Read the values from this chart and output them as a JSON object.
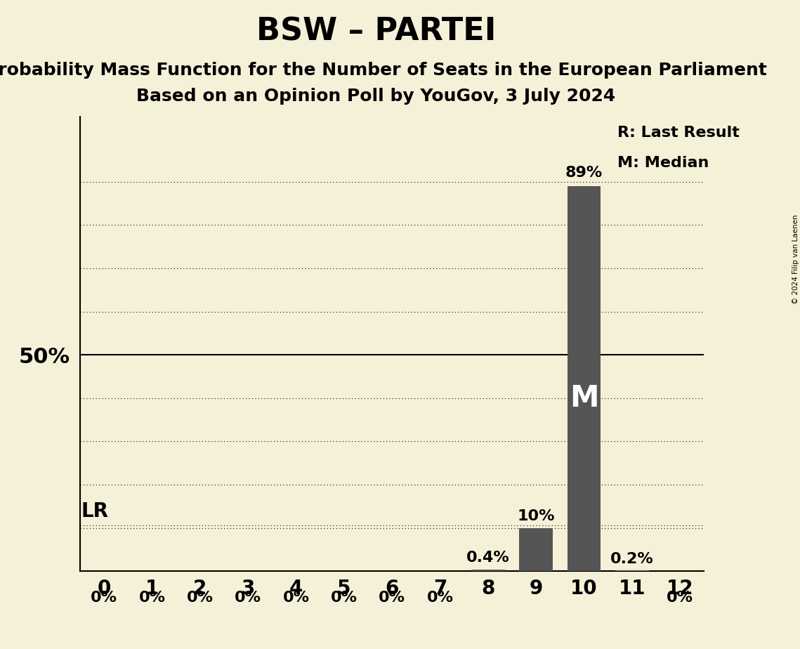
{
  "title": "BSW – PARTEI",
  "subtitle_line1": "Probability Mass Function for the Number of Seats in the European Parliament",
  "subtitle_line2": "Based on an Opinion Poll by YouGov, 3 July 2024",
  "copyright": "© 2024 Filip van Laenen",
  "seats": [
    0,
    1,
    2,
    3,
    4,
    5,
    6,
    7,
    8,
    9,
    10,
    11,
    12
  ],
  "probabilities": [
    0.0,
    0.0,
    0.0,
    0.0,
    0.0,
    0.0,
    0.0,
    0.0,
    0.4,
    10.0,
    89.0,
    0.2,
    0.0
  ],
  "bar_color": "#555555",
  "background_color": "#f5f0d8",
  "median_seat": 10,
  "last_result_seat": 9,
  "bar_labels": [
    "0%",
    "0%",
    "0%",
    "0%",
    "0%",
    "0%",
    "0%",
    "0%",
    "0.4%",
    "10%",
    "89%",
    "0.2%",
    "0%"
  ],
  "y_special_label": "50%",
  "y_special_value": 50,
  "lr_label": "LR",
  "median_label": "M",
  "legend_r": "R: Last Result",
  "legend_m": "M: Median",
  "xlim": [
    -0.5,
    12.5
  ],
  "ylim": [
    0,
    100
  ],
  "title_fontsize": 32,
  "subtitle_fontsize": 18,
  "bar_width": 0.7,
  "lr_line_y": 10.5,
  "gridlines": [
    10,
    20,
    30,
    40,
    50,
    60,
    70,
    80,
    90
  ]
}
